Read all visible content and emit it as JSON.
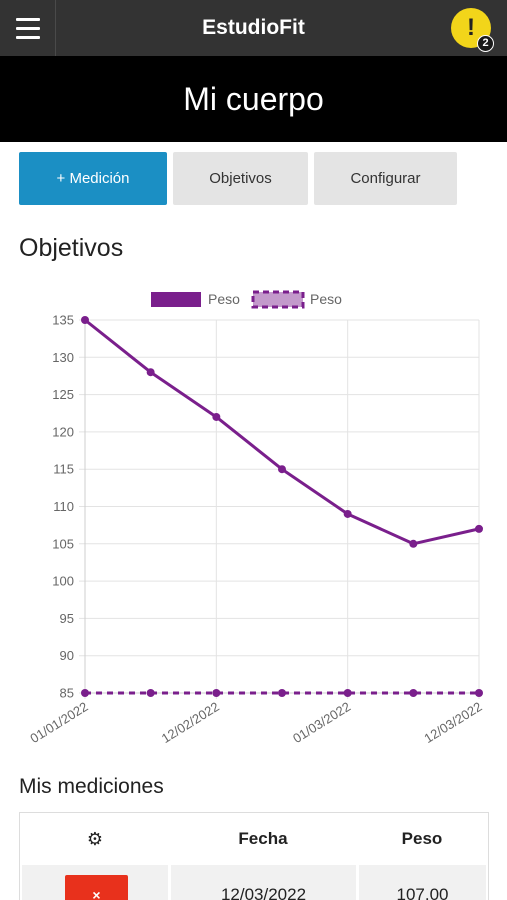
{
  "header": {
    "brand": "EstudioFit",
    "menu_icon": "hamburger-menu-icon",
    "alert_icon": "exclamation-icon",
    "alert_symbol": "!",
    "alert_count": "2",
    "accent_color": "#f2d51a"
  },
  "hero": {
    "title": "Mi cuerpo"
  },
  "actions": {
    "add_measurement": "+ Medición",
    "goals": "Objetivos",
    "configure": "Configurar"
  },
  "section": {
    "title": "Objetivos"
  },
  "chart_data": {
    "type": "line",
    "title": "",
    "xlabel": "",
    "ylabel": "",
    "ylim": [
      85,
      135
    ],
    "yticks": [
      135,
      130,
      125,
      120,
      115,
      110,
      105,
      100,
      95,
      90,
      85
    ],
    "x": [
      "01/01/2022",
      "",
      "12/02/2022",
      "",
      "01/03/2022",
      "",
      "12/03/2022"
    ],
    "xtick_labels": [
      "01/01/2022",
      "12/02/2022",
      "01/03/2022",
      "12/03/2022"
    ],
    "legend_position": "top",
    "grid": true,
    "series": [
      {
        "name": "Peso",
        "style": "solid",
        "color": "#7a1f8c",
        "values": [
          135,
          128,
          122,
          115,
          109,
          105,
          107
        ]
      },
      {
        "name": "Peso",
        "style": "dashed",
        "color": "#7a1f8c",
        "values": [
          85,
          85,
          85,
          85,
          85,
          85,
          85
        ]
      }
    ]
  },
  "measurements": {
    "title": "Mis mediciones",
    "columns": {
      "settings_icon": "gear-icon",
      "settings_symbol": "⚙",
      "date": "Fecha",
      "weight": "Peso"
    },
    "rows": [
      {
        "delete_symbol": "×",
        "date": "12/03/2022",
        "weight": "107.00"
      }
    ],
    "delete_color": "#e8311c"
  }
}
